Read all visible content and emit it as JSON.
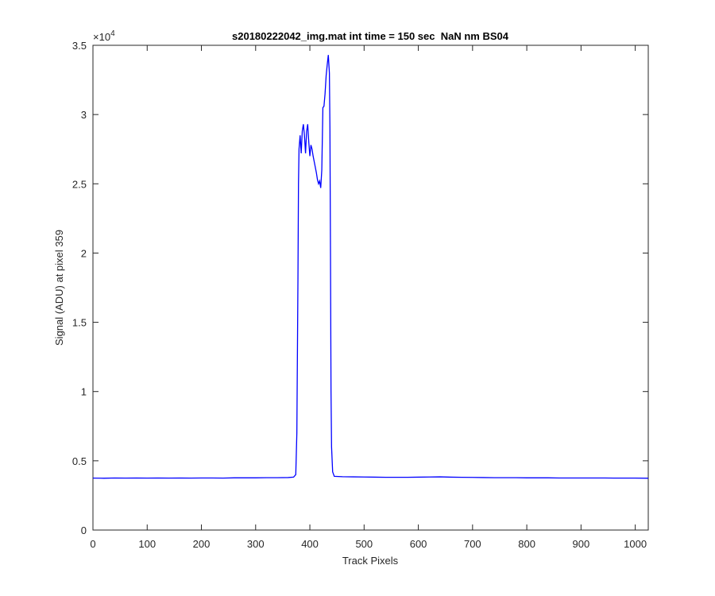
{
  "chart_data": {
    "type": "line",
    "title": "s20180222042_img.mat int time = 150 sec  NaN nm BS04",
    "xlabel": "Track Pixels",
    "ylabel": "Signal (ADU) at pixel 359",
    "y_multiplier_base": "×10",
    "y_multiplier_exp": "4",
    "xlim": [
      0,
      1024
    ],
    "xticks": [
      0,
      100,
      200,
      300,
      400,
      500,
      600,
      700,
      800,
      900,
      1000
    ],
    "ylim": [
      0,
      3.5
    ],
    "yticks": [
      0,
      0.5,
      1,
      1.5,
      2,
      2.5,
      3,
      3.5
    ],
    "grid": false,
    "series": [
      {
        "color": "#0000ff",
        "x": [
          0,
          20,
          40,
          60,
          80,
          100,
          120,
          140,
          160,
          180,
          200,
          220,
          240,
          260,
          280,
          300,
          320,
          340,
          360,
          370,
          374,
          376,
          378,
          379,
          380,
          382,
          384,
          386,
          388,
          390,
          392,
          394,
          396,
          398,
          400,
          402,
          404,
          406,
          408,
          410,
          412,
          414,
          416,
          418,
          420,
          422,
          424,
          426,
          428,
          430,
          432,
          434,
          436,
          437,
          438,
          439,
          440,
          442,
          445,
          460,
          480,
          500,
          520,
          540,
          560,
          580,
          600,
          620,
          640,
          660,
          680,
          700,
          720,
          740,
          760,
          780,
          800,
          820,
          840,
          860,
          880,
          900,
          920,
          940,
          960,
          980,
          1000,
          1024
        ],
        "values": [
          0.375,
          0.374,
          0.376,
          0.375,
          0.376,
          0.375,
          0.376,
          0.375,
          0.376,
          0.375,
          0.376,
          0.376,
          0.375,
          0.377,
          0.377,
          0.377,
          0.378,
          0.378,
          0.379,
          0.382,
          0.4,
          0.7,
          1.8,
          2.5,
          2.75,
          2.85,
          2.72,
          2.88,
          2.93,
          2.85,
          2.72,
          2.88,
          2.93,
          2.8,
          2.7,
          2.78,
          2.75,
          2.7,
          2.66,
          2.62,
          2.58,
          2.53,
          2.5,
          2.52,
          2.47,
          2.6,
          3.05,
          3.06,
          3.15,
          3.28,
          3.36,
          3.43,
          3.3,
          2.9,
          2.0,
          1.0,
          0.6,
          0.42,
          0.388,
          0.385,
          0.384,
          0.383,
          0.382,
          0.381,
          0.381,
          0.381,
          0.382,
          0.383,
          0.384,
          0.382,
          0.381,
          0.38,
          0.379,
          0.378,
          0.378,
          0.378,
          0.377,
          0.377,
          0.377,
          0.376,
          0.376,
          0.376,
          0.376,
          0.376,
          0.375,
          0.375,
          0.375,
          0.374
        ]
      }
    ]
  }
}
